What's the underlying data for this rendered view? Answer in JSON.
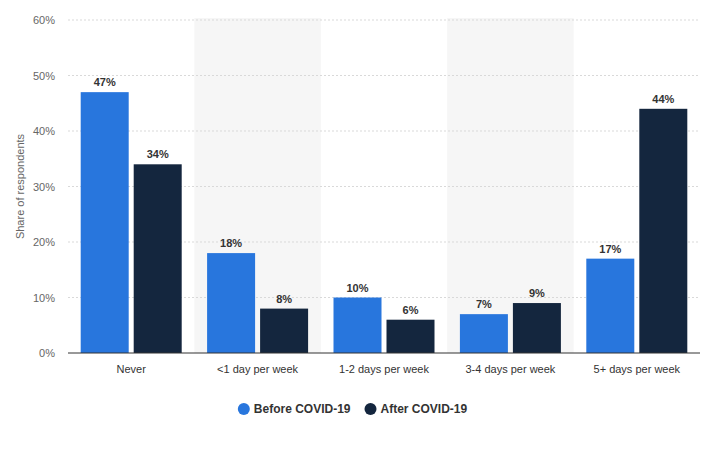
{
  "chart_data": {
    "type": "bar",
    "y_label": "Share of respondents",
    "categories": [
      "Never",
      "<1 day per week",
      "1-2 days per week",
      "3-4 days per week",
      "5+ days per week"
    ],
    "series": [
      {
        "name": "Before COVID-19",
        "color": "#2876dd",
        "values": [
          47,
          18,
          10,
          7,
          17
        ],
        "value_labels": [
          "47%",
          "18%",
          "10%",
          "7%",
          "17%"
        ]
      },
      {
        "name": "After COVID-19",
        "color": "#14263e",
        "values": [
          34,
          8,
          6,
          9,
          44
        ],
        "value_labels": [
          "34%",
          "8%",
          "6%",
          "9%",
          "44%"
        ]
      }
    ],
    "ylim": [
      0,
      60
    ],
    "yticks": [
      {
        "value": 0,
        "label": "0%"
      },
      {
        "value": 10,
        "label": "10%"
      },
      {
        "value": 20,
        "label": "20%"
      },
      {
        "value": 30,
        "label": "30%"
      },
      {
        "value": 40,
        "label": "40%"
      },
      {
        "value": 50,
        "label": "50%"
      },
      {
        "value": 60,
        "label": "60%"
      }
    ],
    "grid": true,
    "data_labels": true,
    "legend": "bottom"
  }
}
